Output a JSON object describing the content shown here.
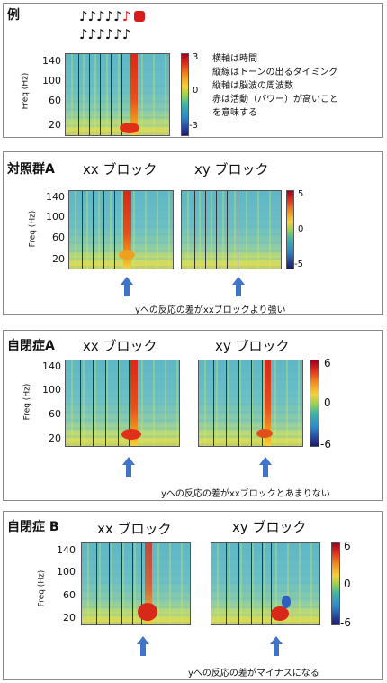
{
  "labels": {
    "freq_axis": "Freq (Hz)",
    "xx_block": "xx ブロック",
    "xy_block": "xy ブロック",
    "notes_row1": "♪♪♪♪♪",
    "notes_row2": "♪♪♪♪♪♪"
  },
  "ticks": {
    "freq": [
      "140",
      "100",
      "60",
      "20"
    ],
    "cbar3": [
      "3",
      "0",
      "-3"
    ],
    "cbar5": [
      "5",
      "0",
      "-5"
    ],
    "cbar6": [
      "6",
      "0",
      "-6"
    ]
  },
  "panels": {
    "example": {
      "title": "例",
      "desc": [
        "横軸は時間",
        "縦線はトーンの出るタイミング",
        "縦軸は脳波の周波数",
        "赤は活動（パワー）が高いこと",
        "を意味する"
      ]
    },
    "control": {
      "title": "対照群A",
      "note": "yへの反応の差がxxブロックより強い"
    },
    "autismA": {
      "title": "自閉症A",
      "note": "yへの反応の差がxxブロックとあまりない"
    },
    "autismB": {
      "title": "自閉症 B",
      "note": "yへの反応の差がマイナスになる"
    }
  }
}
